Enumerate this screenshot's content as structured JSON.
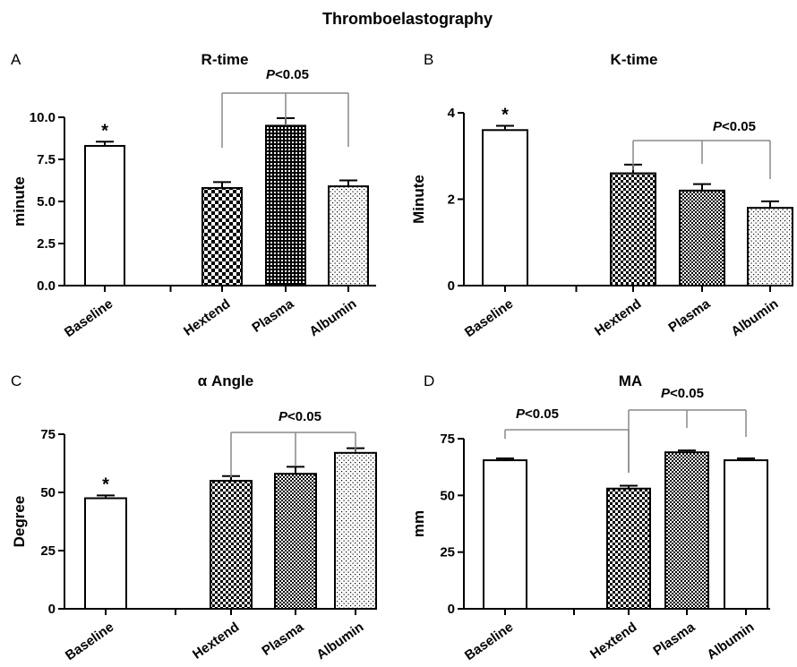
{
  "figure_title": "Thromboelastography",
  "chart_data": [
    {
      "type": "bar",
      "panel_letter": "A",
      "title": "R-time",
      "ylabel": "minute",
      "categories": [
        "Baseline",
        "Hextend",
        "Plasma",
        "Albumin"
      ],
      "values": [
        8.3,
        5.8,
        9.5,
        5.9
      ],
      "errors": [
        0.25,
        0.35,
        0.45,
        0.35
      ],
      "ylim": [
        0,
        10
      ],
      "yticks": [
        "0.0",
        "2.5",
        "5.0",
        "7.5",
        "10.0"
      ],
      "fills": [
        "white",
        "checker-large",
        "grid-dense",
        "dots"
      ],
      "star_on": "Baseline",
      "significance": {
        "label": "P<0.05",
        "connects": [
          "Hextend",
          "Plasma",
          "Albumin"
        ]
      }
    },
    {
      "type": "bar",
      "panel_letter": "B",
      "title": "K-time",
      "ylabel": "Minute",
      "categories": [
        "Baseline",
        "Hextend",
        "Plasma",
        "Albumin"
      ],
      "values": [
        3.6,
        2.6,
        2.2,
        1.8
      ],
      "errors": [
        0.1,
        0.2,
        0.15,
        0.15
      ],
      "ylim": [
        0,
        4
      ],
      "yticks": [
        "0",
        "2",
        "4"
      ],
      "fills": [
        "white",
        "checker-medium",
        "checker-small",
        "dots"
      ],
      "star_on": "Baseline",
      "significance": {
        "label": "P<0.05",
        "connects": [
          "Hextend",
          "Plasma",
          "Albumin"
        ]
      }
    },
    {
      "type": "bar",
      "panel_letter": "C",
      "title": "α Angle",
      "ylabel": "Degree",
      "categories": [
        "Baseline",
        "Hextend",
        "Plasma",
        "Albumin"
      ],
      "values": [
        47.5,
        55,
        58,
        67
      ],
      "errors": [
        1.2,
        2.0,
        3.0,
        2.0
      ],
      "ylim": [
        0,
        75
      ],
      "yticks": [
        "0",
        "25",
        "50",
        "75"
      ],
      "fills": [
        "white",
        "checker-medium",
        "checker-small",
        "dots"
      ],
      "star_on": "Baseline",
      "significance": {
        "label": "P<0.05",
        "connects": [
          "Hextend",
          "Plasma",
          "Albumin"
        ]
      }
    },
    {
      "type": "bar",
      "panel_letter": "D",
      "title": "MA",
      "ylabel": "mm",
      "categories": [
        "Baseline",
        "Hextend",
        "Plasma",
        "Albumin"
      ],
      "values": [
        65.5,
        53,
        69,
        65.5
      ],
      "errors": [
        0.8,
        1.3,
        0.8,
        0.8
      ],
      "ylim": [
        0,
        75
      ],
      "yticks": [
        "0",
        "25",
        "50",
        "75"
      ],
      "fills": [
        "white",
        "checker-medium",
        "checker-small",
        "white"
      ],
      "star_on": null,
      "significance": [
        {
          "label": "P<0.05",
          "connects": [
            "Baseline",
            "Hextend"
          ]
        },
        {
          "label": "P<0.05",
          "connects": [
            "Hextend",
            "Plasma",
            "Albumin"
          ]
        }
      ]
    }
  ]
}
